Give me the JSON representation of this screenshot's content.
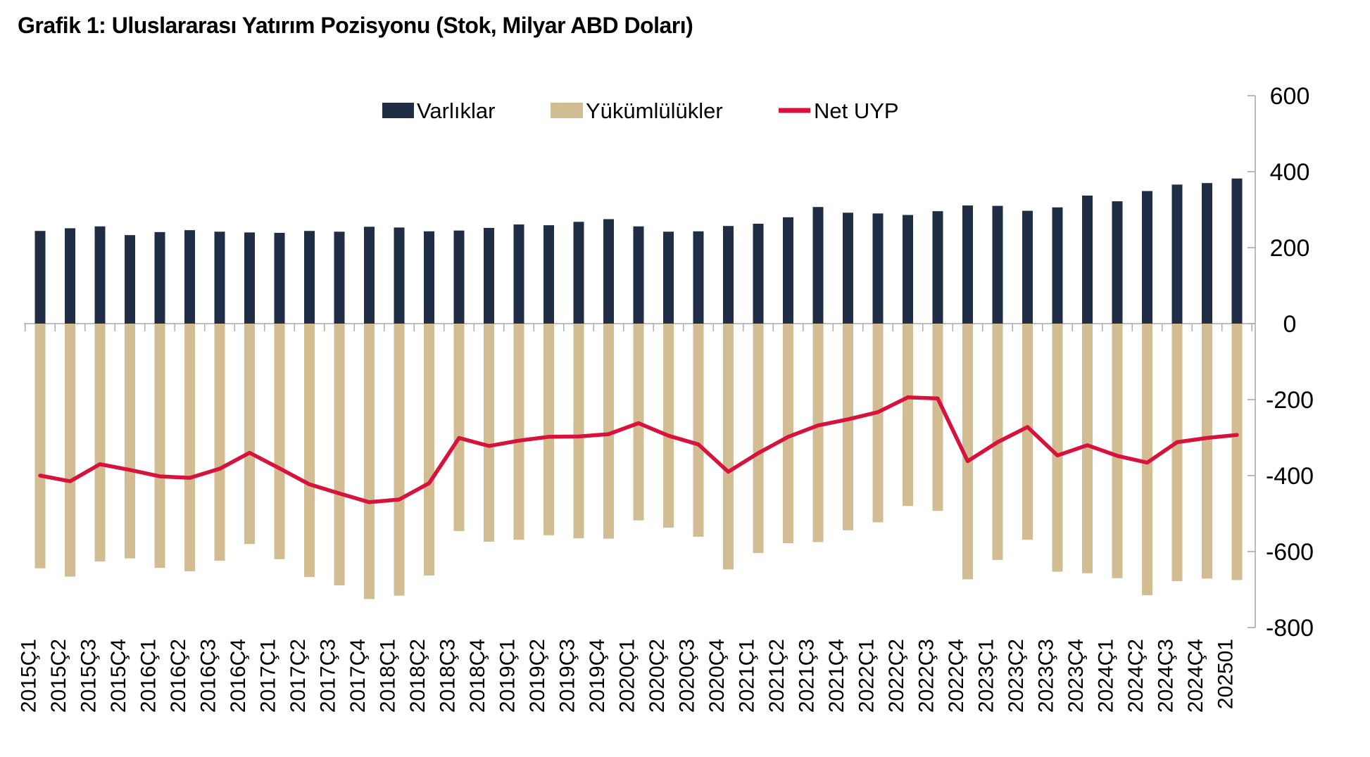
{
  "title": "Grafik 1: Uluslararası Yatırım Pozisyonu (Stok, Milyar ABD Doları)",
  "legend": {
    "varliklar": "Varlıklar",
    "yukumlulukler": "Yükümlülükler",
    "net_uyp": "Net UYP"
  },
  "colors": {
    "assets": "#1F2E44",
    "liabilities": "#D2BD93",
    "net_line": "#D7123C",
    "axis": "#A9A9A9",
    "text": "#000000"
  },
  "chart_data": {
    "type": "bar",
    "title": "Grafik 1: Uluslararası Yatırım Pozisyonu (Stok, Milyar ABD Doları)",
    "xlabel": "",
    "ylabel": "",
    "units": "Milyar ABD Doları",
    "ylim": [
      -800,
      600
    ],
    "y_ticks": [
      600,
      400,
      200,
      0,
      -200,
      -400,
      -600,
      -800
    ],
    "grid": false,
    "legend_position": "top",
    "categories": [
      "2015Ç1",
      "2015Ç2",
      "2015Ç3",
      "2015Ç4",
      "2016Ç1",
      "2016Ç2",
      "2016Ç3",
      "2016Ç4",
      "2017Ç1",
      "2017Ç2",
      "2017Ç3",
      "2017Ç4",
      "2018Ç1",
      "2018Ç2",
      "2018Ç3",
      "2018Ç4",
      "2019Ç1",
      "2019Ç2",
      "2019Ç3",
      "2019Ç4",
      "2020Ç1",
      "2020Ç2",
      "2020Ç3",
      "2020Ç4",
      "2021Ç1",
      "2021Ç2",
      "2021Ç3",
      "2021Ç4",
      "2022Ç1",
      "2022Ç2",
      "2022Ç3",
      "2022Ç4",
      "2023Ç1",
      "2023Ç2",
      "2023Ç3",
      "2023Ç4",
      "2024Ç1",
      "2024Ç2",
      "2024Ç3",
      "2024Ç4",
      "202501"
    ],
    "series": [
      {
        "name": "Varlıklar",
        "type": "bar",
        "color": "#1F2E44",
        "values": [
          244,
          251,
          256,
          233,
          241,
          246,
          242,
          240,
          239,
          244,
          242,
          255,
          253,
          243,
          245,
          252,
          261,
          259,
          268,
          275,
          256,
          242,
          243,
          257,
          263,
          280,
          307,
          292,
          290,
          286,
          296,
          311,
          310,
          297,
          306,
          337,
          322,
          349,
          366,
          370,
          382
        ]
      },
      {
        "name": "Yükümlülükler",
        "type": "bar",
        "color": "#D2BD93",
        "values": [
          -644,
          -666,
          -626,
          -618,
          -643,
          -652,
          -624,
          -580,
          -620,
          -667,
          -689,
          -725,
          -716,
          -663,
          -546,
          -574,
          -569,
          -557,
          -565,
          -566,
          -518,
          -537,
          -561,
          -647,
          -604,
          -578,
          -575,
          -544,
          -523,
          -480,
          -493,
          -673,
          -622,
          -569,
          -653,
          -657,
          -670,
          -715,
          -678,
          -671,
          -675
        ]
      },
      {
        "name": "Net UYP",
        "type": "line",
        "color": "#D7123C",
        "values": [
          -400,
          -415,
          -370,
          -385,
          -402,
          -406,
          -382,
          -340,
          -381,
          -423,
          -447,
          -470,
          -463,
          -420,
          -301,
          -322,
          -308,
          -298,
          -297,
          -291,
          -262,
          -295,
          -318,
          -390,
          -341,
          -298,
          -268,
          -252,
          -233,
          -194,
          -197,
          -362,
          -312,
          -272,
          -347,
          -320,
          -348,
          -366,
          -312,
          -301,
          -293
        ]
      }
    ]
  }
}
